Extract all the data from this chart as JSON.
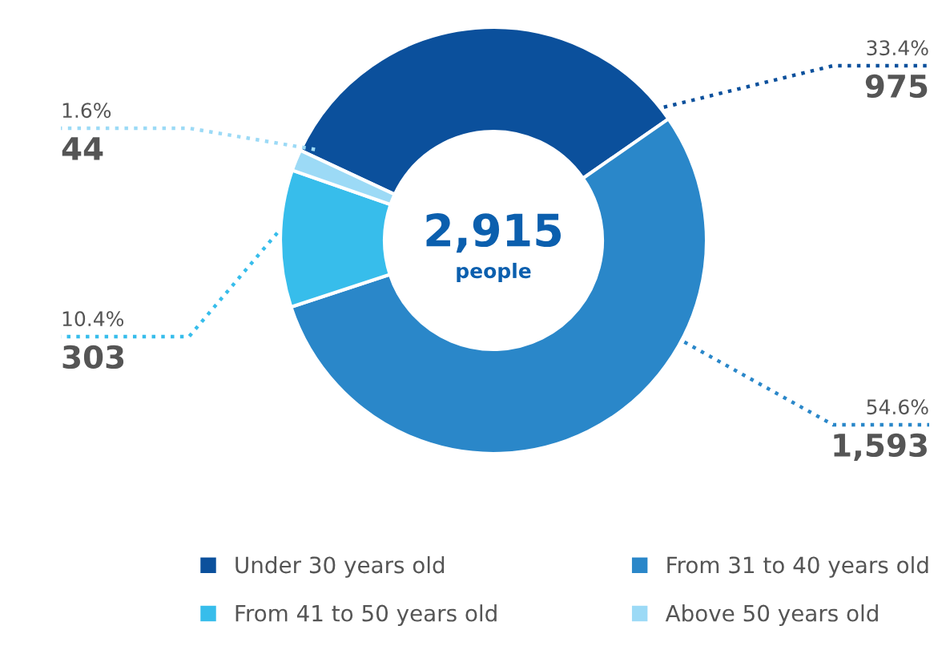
{
  "chart_data": {
    "type": "donut",
    "categories": [
      "Under 30 years old",
      "From 31 to 40 years old",
      "From 41 to 50 years old",
      "Above 50 years old"
    ],
    "values": [
      33.4,
      54.6,
      10.4,
      1.6
    ],
    "colors": [
      "#0b509c",
      "#2a87c9",
      "#37bdeb",
      "#9cdaf6"
    ],
    "value_labels": [
      "33.4%",
      "54.6%",
      "10.4%",
      "1.6%"
    ],
    "annotations": [
      "2,915",
      "people",
      "975",
      "1,593",
      "303",
      "44"
    ],
    "legend": "bottom"
  }
}
